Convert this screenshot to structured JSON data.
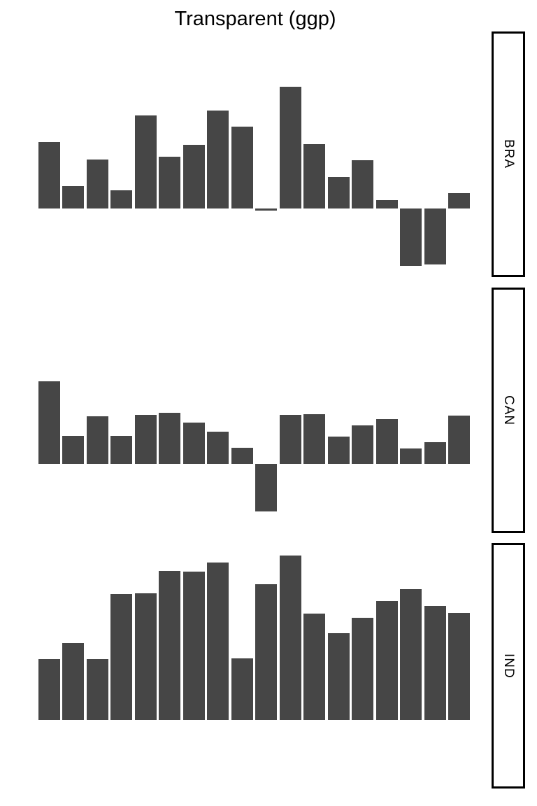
{
  "title": "Transparent (ggp)",
  "colors": {
    "bar": "#464646",
    "background": "#ffffff",
    "strip_background": "#ffffff",
    "strip_border": "#000000",
    "text": "#000000"
  },
  "chart_data": {
    "type": "bar",
    "title": "Transparent (ggp)",
    "xlabel": "",
    "ylabel": "",
    "grid": false,
    "axes_visible": false,
    "legend": "none",
    "strip_position": "right",
    "scales": "fixed",
    "n_bars_per_facet": 18,
    "value_units": "relative (pixel-height units, shared scale across facets, baseline = 0)",
    "facets": [
      {
        "label": "BRA",
        "values": [
          95,
          32,
          70,
          26,
          133,
          74,
          91,
          140,
          117,
          -3,
          174,
          92,
          45,
          69,
          12,
          -82,
          -80,
          22
        ]
      },
      {
        "label": "CAN",
        "values": [
          118,
          40,
          68,
          40,
          70,
          73,
          59,
          46,
          23,
          -68,
          70,
          71,
          39,
          55,
          64,
          22,
          31,
          69
        ]
      },
      {
        "label": "IND",
        "values": [
          87,
          110,
          87,
          180,
          181,
          213,
          212,
          225,
          88,
          194,
          235,
          152,
          124,
          146,
          170,
          187,
          163,
          153
        ]
      }
    ]
  }
}
